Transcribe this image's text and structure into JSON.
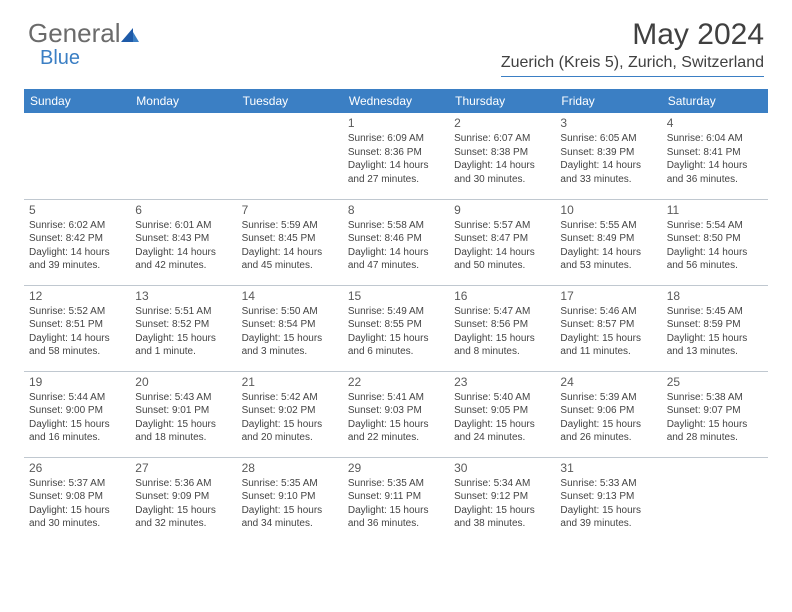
{
  "logo": {
    "text1": "General",
    "text2": "Blue"
  },
  "title": "May 2024",
  "location": "Zuerich (Kreis 5), Zurich, Switzerland",
  "colors": {
    "header_bg": "#3b7fc4",
    "header_text": "#ffffff",
    "border": "#c0c8d0",
    "title_text": "#404040",
    "logo_gray": "#6b6b6b",
    "logo_blue": "#3b7fc4"
  },
  "weekdays": [
    "Sunday",
    "Monday",
    "Tuesday",
    "Wednesday",
    "Thursday",
    "Friday",
    "Saturday"
  ],
  "first_weekday_index": 3,
  "days": [
    {
      "n": 1,
      "sr": "6:09 AM",
      "ss": "8:36 PM",
      "dl": "14 hours and 27 minutes."
    },
    {
      "n": 2,
      "sr": "6:07 AM",
      "ss": "8:38 PM",
      "dl": "14 hours and 30 minutes."
    },
    {
      "n": 3,
      "sr": "6:05 AM",
      "ss": "8:39 PM",
      "dl": "14 hours and 33 minutes."
    },
    {
      "n": 4,
      "sr": "6:04 AM",
      "ss": "8:41 PM",
      "dl": "14 hours and 36 minutes."
    },
    {
      "n": 5,
      "sr": "6:02 AM",
      "ss": "8:42 PM",
      "dl": "14 hours and 39 minutes."
    },
    {
      "n": 6,
      "sr": "6:01 AM",
      "ss": "8:43 PM",
      "dl": "14 hours and 42 minutes."
    },
    {
      "n": 7,
      "sr": "5:59 AM",
      "ss": "8:45 PM",
      "dl": "14 hours and 45 minutes."
    },
    {
      "n": 8,
      "sr": "5:58 AM",
      "ss": "8:46 PM",
      "dl": "14 hours and 47 minutes."
    },
    {
      "n": 9,
      "sr": "5:57 AM",
      "ss": "8:47 PM",
      "dl": "14 hours and 50 minutes."
    },
    {
      "n": 10,
      "sr": "5:55 AM",
      "ss": "8:49 PM",
      "dl": "14 hours and 53 minutes."
    },
    {
      "n": 11,
      "sr": "5:54 AM",
      "ss": "8:50 PM",
      "dl": "14 hours and 56 minutes."
    },
    {
      "n": 12,
      "sr": "5:52 AM",
      "ss": "8:51 PM",
      "dl": "14 hours and 58 minutes."
    },
    {
      "n": 13,
      "sr": "5:51 AM",
      "ss": "8:52 PM",
      "dl": "15 hours and 1 minute."
    },
    {
      "n": 14,
      "sr": "5:50 AM",
      "ss": "8:54 PM",
      "dl": "15 hours and 3 minutes."
    },
    {
      "n": 15,
      "sr": "5:49 AM",
      "ss": "8:55 PM",
      "dl": "15 hours and 6 minutes."
    },
    {
      "n": 16,
      "sr": "5:47 AM",
      "ss": "8:56 PM",
      "dl": "15 hours and 8 minutes."
    },
    {
      "n": 17,
      "sr": "5:46 AM",
      "ss": "8:57 PM",
      "dl": "15 hours and 11 minutes."
    },
    {
      "n": 18,
      "sr": "5:45 AM",
      "ss": "8:59 PM",
      "dl": "15 hours and 13 minutes."
    },
    {
      "n": 19,
      "sr": "5:44 AM",
      "ss": "9:00 PM",
      "dl": "15 hours and 16 minutes."
    },
    {
      "n": 20,
      "sr": "5:43 AM",
      "ss": "9:01 PM",
      "dl": "15 hours and 18 minutes."
    },
    {
      "n": 21,
      "sr": "5:42 AM",
      "ss": "9:02 PM",
      "dl": "15 hours and 20 minutes."
    },
    {
      "n": 22,
      "sr": "5:41 AM",
      "ss": "9:03 PM",
      "dl": "15 hours and 22 minutes."
    },
    {
      "n": 23,
      "sr": "5:40 AM",
      "ss": "9:05 PM",
      "dl": "15 hours and 24 minutes."
    },
    {
      "n": 24,
      "sr": "5:39 AM",
      "ss": "9:06 PM",
      "dl": "15 hours and 26 minutes."
    },
    {
      "n": 25,
      "sr": "5:38 AM",
      "ss": "9:07 PM",
      "dl": "15 hours and 28 minutes."
    },
    {
      "n": 26,
      "sr": "5:37 AM",
      "ss": "9:08 PM",
      "dl": "15 hours and 30 minutes."
    },
    {
      "n": 27,
      "sr": "5:36 AM",
      "ss": "9:09 PM",
      "dl": "15 hours and 32 minutes."
    },
    {
      "n": 28,
      "sr": "5:35 AM",
      "ss": "9:10 PM",
      "dl": "15 hours and 34 minutes."
    },
    {
      "n": 29,
      "sr": "5:35 AM",
      "ss": "9:11 PM",
      "dl": "15 hours and 36 minutes."
    },
    {
      "n": 30,
      "sr": "5:34 AM",
      "ss": "9:12 PM",
      "dl": "15 hours and 38 minutes."
    },
    {
      "n": 31,
      "sr": "5:33 AM",
      "ss": "9:13 PM",
      "dl": "15 hours and 39 minutes."
    }
  ],
  "labels": {
    "sunrise": "Sunrise:",
    "sunset": "Sunset:",
    "daylight": "Daylight:"
  }
}
